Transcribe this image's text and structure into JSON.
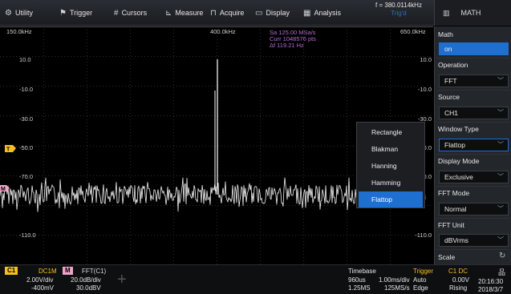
{
  "menu": [
    {
      "icon": "⚙",
      "icon_name": "gear-icon",
      "label": "Utility"
    },
    {
      "icon": "⚑",
      "icon_name": "flag-icon",
      "label": "Trigger"
    },
    {
      "icon": "#",
      "icon_name": "hash-icon",
      "label": "Cursors"
    },
    {
      "icon": "⊾",
      "icon_name": "chart-icon",
      "label": "Measure"
    },
    {
      "icon": "⊓",
      "icon_name": "pulse-icon",
      "label": "Acquire"
    },
    {
      "icon": "▭",
      "icon_name": "monitor-icon",
      "label": "Display"
    },
    {
      "icon": "▦",
      "icon_name": "analysis-icon",
      "label": "Analysis"
    }
  ],
  "frequency": {
    "value": "f = 380.0114kHz",
    "trigd": "Trig'd"
  },
  "math_header": {
    "icon": "▥",
    "label": "MATH"
  },
  "scope": {
    "freq_left": "150.0kHz",
    "freq_center": "400.0kHz",
    "freq_right": "650.0kHz",
    "info_sa": "Sa 125.00 MSa/s",
    "info_curr": "Curr 1048576 pts",
    "info_df": "Δf 119.21 Hz",
    "left_levels": [
      "10.0",
      "-10.0",
      "-30.0",
      "-50.0",
      "-70.0",
      "-110.0"
    ],
    "right_levels": [
      "10.0",
      "-10.0",
      "-30.0",
      "-50.0",
      "-70.0",
      "-110.0"
    ],
    "marker_trigger": "T",
    "marker_math": "M"
  },
  "panel": {
    "math_label": "Math",
    "math_value": "on",
    "operation_label": "Operation",
    "operation_value": "FFT",
    "source_label": "Source",
    "source_value": "CH1",
    "window_label": "Window Type",
    "window_value": "Flattop",
    "display_label": "Display Mode",
    "display_value": "Exclusive",
    "fftmode_label": "FFT Mode",
    "fftmode_value": "Normal",
    "fftunit_label": "FFT Unit",
    "fftunit_value": "dBVrms",
    "scale_label": "Scale"
  },
  "window_options": [
    "Rectangle",
    "Blakman",
    "Hanning",
    "Hamming",
    "Flattop"
  ],
  "window_selected": "Flattop",
  "bottom": {
    "c1_tag": "C1",
    "c1_coupling": "DC1M",
    "c1_scale": "2.00V/div",
    "c1_offset": "-400mV",
    "m_tag": "M",
    "m_source": "FFT(C1)",
    "m_scale": "20.0dB/div",
    "m_offset": "30.0dBV",
    "timebase_label": "Timebase",
    "tb_time": "960us",
    "tb_rate": "1.00ms/div",
    "tb_mem": "1.25MS",
    "tb_sa": "125MS/s",
    "trigger_label": "Trigger",
    "trig_mode": "Auto",
    "trig_type": "Edge",
    "trig_src": "C1 DC",
    "trig_level": "0.00V",
    "trig_slope": "Rising",
    "time": "20:16:30",
    "date": "2018/3/7"
  },
  "colors": {
    "ch1": "#f6c021",
    "math": "#f2a2c8",
    "accent": "#1f6fd1",
    "info": "#b26ad0"
  }
}
